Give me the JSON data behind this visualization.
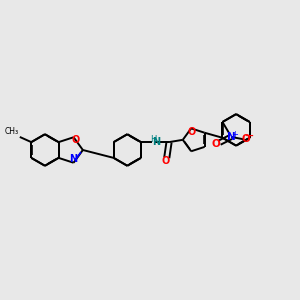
{
  "background_color": "#e8e8e8",
  "atoms": {
    "colors": {
      "C": "#000000",
      "N": "#0000ff",
      "O": "#ff0000",
      "H": "#008080"
    }
  },
  "figsize": [
    3.0,
    3.0
  ],
  "dpi": 100
}
